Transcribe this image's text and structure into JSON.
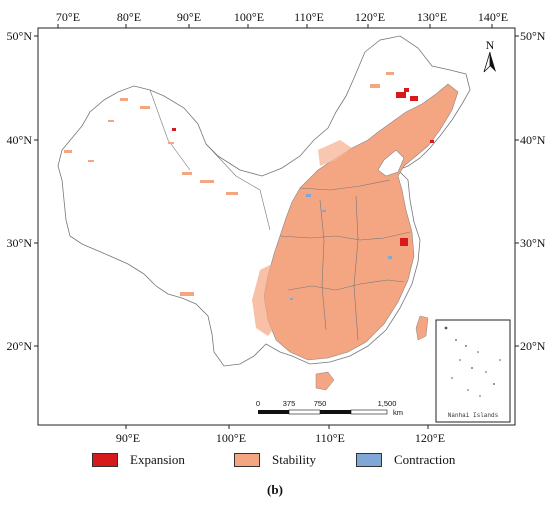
{
  "map": {
    "top_ticks": [
      "70°E",
      "80°E",
      "90°E",
      "100°E",
      "110°E",
      "120°E",
      "130°E",
      "140°E"
    ],
    "bottom_ticks": [
      "90°E",
      "100°E",
      "110°E",
      "120°E"
    ],
    "left_ticks": [
      "50°N",
      "40°N",
      "30°N",
      "20°N"
    ],
    "right_ticks": [
      "50°N",
      "40°N",
      "30°N",
      "20°N"
    ],
    "north_label": "N",
    "scale": {
      "labels": [
        "0",
        "375",
        "750",
        "1,500"
      ],
      "unit": "km"
    },
    "inset_label": "Nanhai Islands"
  },
  "legend": {
    "items": [
      {
        "label": "Expansion",
        "color": "#d7191c"
      },
      {
        "label": "Stability",
        "color": "#f4a582"
      },
      {
        "label": "Contraction",
        "color": "#7fa8d9"
      }
    ]
  },
  "caption": "(b)"
}
